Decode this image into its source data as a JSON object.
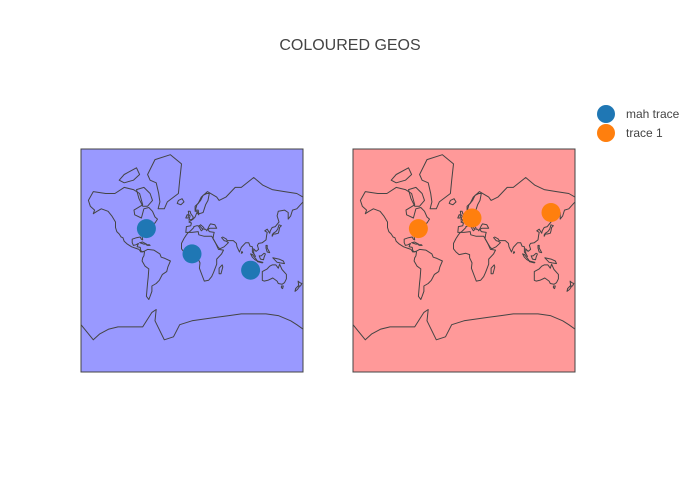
{
  "title": "COLOURED GEOS",
  "legend": {
    "placement": "top-right",
    "items": [
      {
        "label": "mah trace",
        "color": "#1f77b4"
      },
      {
        "label": "trace 1",
        "color": "#ff7f0e"
      }
    ]
  },
  "chart_data": [
    {
      "type": "scatter",
      "geo": "world map (mercator)",
      "background_color": "#9999ff",
      "series": [
        {
          "name": "mah trace",
          "color": "#1f77b4",
          "points": [
            {
              "lon": -74,
              "lat": 40.7
            },
            {
              "lon": 0,
              "lat": 5
            },
            {
              "lon": 95,
              "lat": -20
            }
          ]
        }
      ]
    },
    {
      "type": "scatter",
      "geo": "world map (mercator)",
      "background_color": "#ff9999",
      "series": [
        {
          "name": "trace 1",
          "color": "#ff7f0e",
          "points": [
            {
              "lon": -74,
              "lat": 40.7
            },
            {
              "lon": 13,
              "lat": 52
            },
            {
              "lon": 141,
              "lat": 57
            }
          ]
        }
      ]
    }
  ]
}
